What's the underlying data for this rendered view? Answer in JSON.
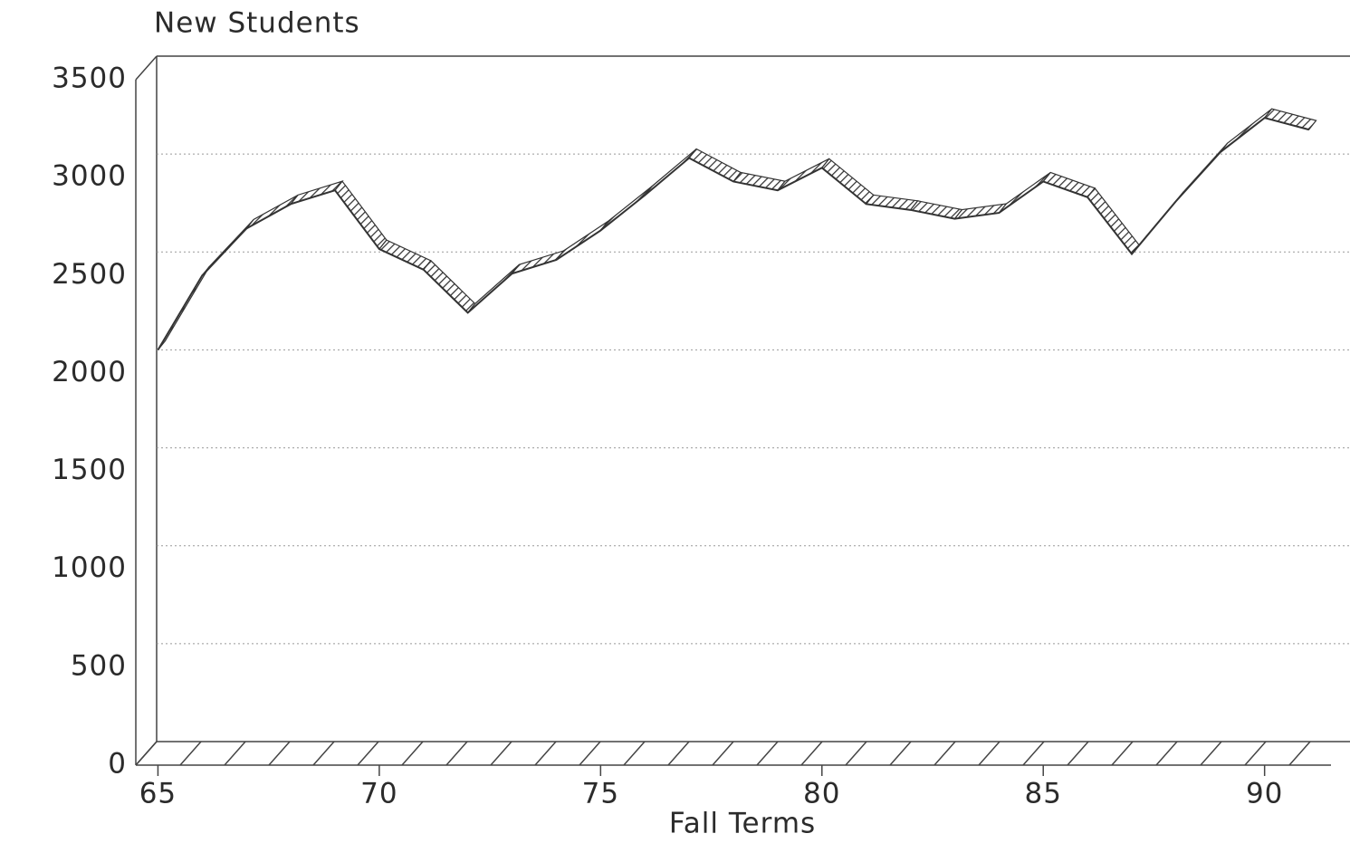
{
  "chart_data": {
    "type": "line",
    "title": "New Students",
    "xlabel": "Fall Terms",
    "x": [
      65,
      66,
      67,
      68,
      69,
      70,
      71,
      72,
      73,
      74,
      75,
      76,
      77,
      78,
      79,
      80,
      81,
      82,
      83,
      84,
      85,
      86,
      87,
      88,
      89,
      90,
      91
    ],
    "series": [
      {
        "name": "New Students",
        "color": "#333333",
        "values": [
          2120,
          2500,
          2740,
          2865,
          2935,
          2635,
          2530,
          2310,
          2510,
          2580,
          2730,
          2910,
          3100,
          2980,
          2935,
          3050,
          2865,
          2835,
          2790,
          2820,
          2980,
          2900,
          2610,
          2880,
          3130,
          3305,
          3245
        ]
      }
    ],
    "xlim": [
      64.5,
      91.5
    ],
    "xticks": [
      65,
      70,
      75,
      80,
      85,
      90
    ],
    "ylim": [
      0,
      3500
    ],
    "yticks": [
      0,
      500,
      1000,
      1500,
      2000,
      2500,
      3000,
      3500
    ],
    "grid": true
  }
}
